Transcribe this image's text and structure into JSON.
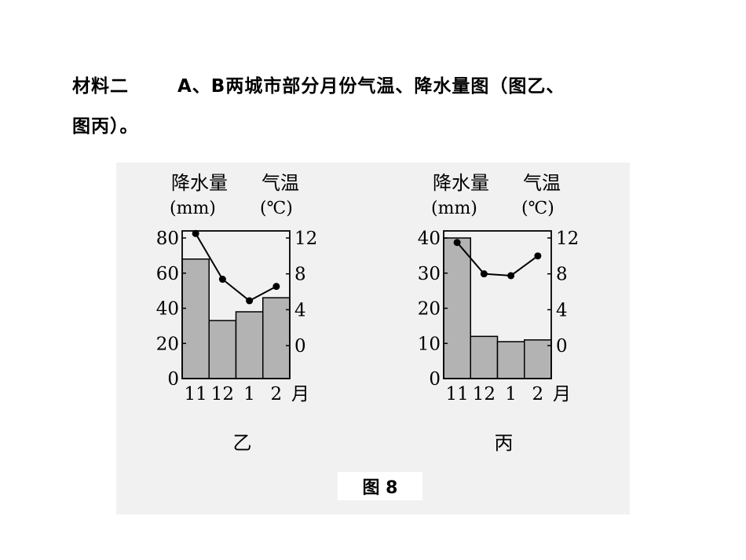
{
  "text": {
    "line1_label": "材料二",
    "line1_body": "A、B两城市部分月份气温、降水量图（图乙、",
    "line2": "图丙）。"
  },
  "figure_caption": "图 8",
  "chart_data": [
    {
      "type": "bar+line",
      "label": "乙",
      "left_axis_title": "降水量",
      "left_axis_unit": "(mm)",
      "right_axis_title": "气温",
      "right_axis_unit": "(℃)",
      "categories": [
        "11",
        "12",
        "1",
        "2"
      ],
      "x_unit": "月",
      "precipitation": [
        68,
        33,
        38,
        46
      ],
      "temperature": [
        12.5,
        7.4,
        5.0,
        6.6
      ],
      "left_ylim": [
        0,
        80
      ],
      "left_ticks": [
        0,
        20,
        40,
        60,
        80
      ],
      "right_ylim": [
        0,
        12
      ],
      "right_ticks": [
        0,
        4,
        8,
        12
      ],
      "bar_color": "#b3b3b3"
    },
    {
      "type": "bar+line",
      "label": "丙",
      "left_axis_title": "降水量",
      "left_axis_unit": "(mm)",
      "right_axis_title": "气温",
      "right_axis_unit": "(℃)",
      "categories": [
        "11",
        "12",
        "1",
        "2"
      ],
      "x_unit": "月",
      "precipitation": [
        40,
        12,
        10.5,
        11
      ],
      "temperature": [
        11.5,
        8.0,
        7.8,
        10.0
      ],
      "left_ylim": [
        0,
        40
      ],
      "left_ticks": [
        0,
        10,
        20,
        30,
        40
      ],
      "right_ylim": [
        0,
        12
      ],
      "right_ticks": [
        0,
        4,
        8,
        12
      ],
      "bar_color": "#b3b3b3"
    }
  ]
}
